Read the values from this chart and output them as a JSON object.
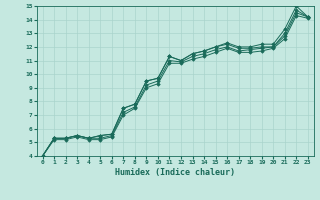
{
  "title": "",
  "xlabel": "Humidex (Indice chaleur)",
  "ylabel": "",
  "xlim": [
    -0.5,
    23.5
  ],
  "ylim": [
    4,
    15
  ],
  "xticks": [
    0,
    1,
    2,
    3,
    4,
    5,
    6,
    7,
    8,
    9,
    10,
    11,
    12,
    13,
    14,
    15,
    16,
    17,
    18,
    19,
    20,
    21,
    22,
    23
  ],
  "yticks": [
    4,
    5,
    6,
    7,
    8,
    9,
    10,
    11,
    12,
    13,
    14,
    15
  ],
  "bg_color": "#c5e8e0",
  "grid_color": "#aad4cc",
  "line_color": "#1a6b5a",
  "series": [
    [
      4.0,
      5.3,
      5.3,
      5.5,
      5.3,
      5.5,
      5.6,
      7.5,
      7.8,
      9.5,
      9.7,
      11.3,
      11.0,
      11.5,
      11.7,
      12.0,
      12.3,
      12.0,
      12.0,
      12.2,
      12.2,
      13.3,
      15.0,
      14.2
    ],
    [
      4.0,
      5.3,
      5.3,
      5.5,
      5.3,
      5.5,
      5.6,
      7.5,
      7.8,
      9.5,
      9.7,
      11.3,
      11.0,
      11.5,
      11.7,
      12.0,
      12.2,
      11.9,
      11.9,
      12.0,
      12.0,
      13.0,
      14.7,
      14.2
    ],
    [
      4.0,
      5.3,
      5.3,
      5.5,
      5.3,
      5.3,
      5.5,
      7.2,
      7.6,
      9.2,
      9.5,
      11.0,
      10.9,
      11.3,
      11.5,
      11.8,
      12.0,
      11.7,
      11.8,
      11.9,
      12.0,
      12.8,
      14.5,
      14.2
    ],
    [
      4.0,
      5.2,
      5.2,
      5.4,
      5.2,
      5.2,
      5.4,
      7.0,
      7.5,
      9.0,
      9.3,
      10.8,
      10.8,
      11.1,
      11.3,
      11.6,
      11.9,
      11.6,
      11.6,
      11.7,
      11.9,
      12.6,
      14.3,
      14.1
    ]
  ],
  "figsize": [
    3.2,
    2.0
  ],
  "dpi": 100
}
